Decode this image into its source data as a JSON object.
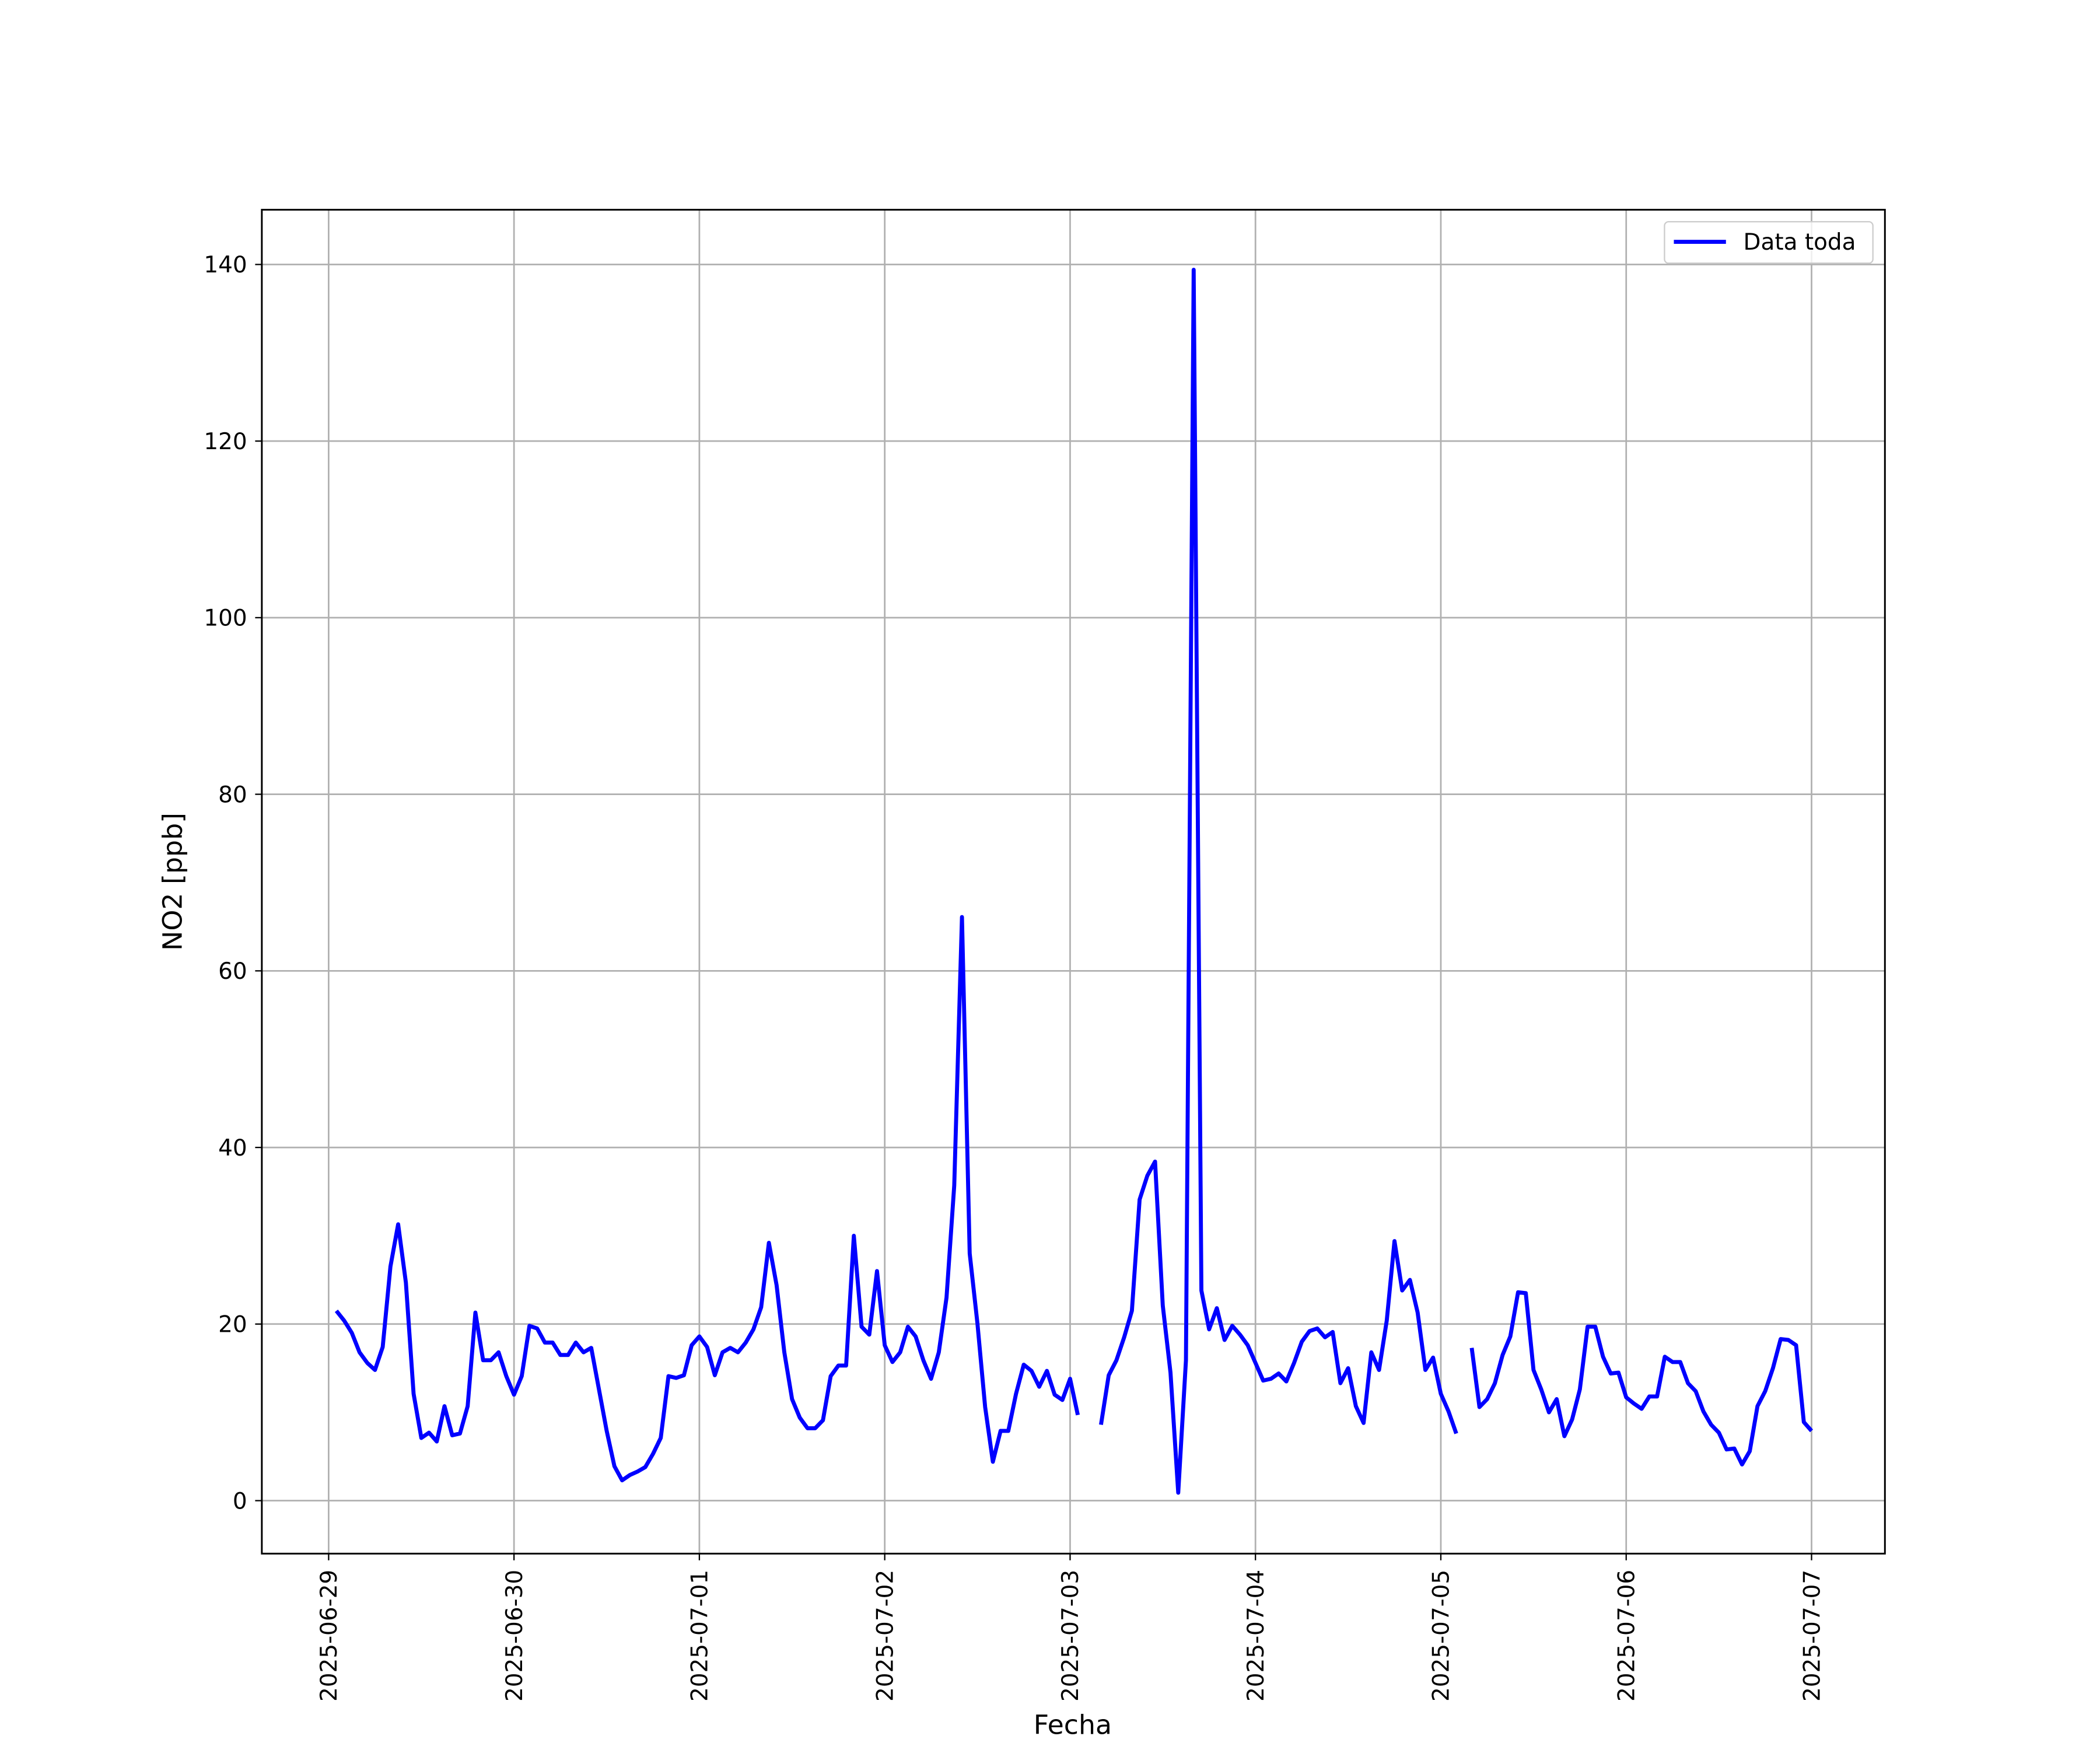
{
  "chart_data": {
    "type": "line",
    "xlabel": "Fecha",
    "ylabel": "NO2 [ppb]",
    "xlim": [
      "2025-06-28 15:21",
      "2025-07-07 09:30"
    ],
    "xticks": [
      "2025-06-29",
      "2025-06-30",
      "2025-07-01",
      "2025-07-02",
      "2025-07-03",
      "2025-07-04",
      "2025-07-05",
      "2025-07-06",
      "2025-07-07"
    ],
    "ylim": [
      -6,
      146.2
    ],
    "yticks": [
      0,
      20,
      40,
      60,
      80,
      100,
      120,
      140
    ],
    "grid": true,
    "legend": "upper right",
    "x": [
      "2025-06-29 01:00",
      "2025-06-29 02:00",
      "2025-06-29 03:00",
      "2025-06-29 04:00",
      "2025-06-29 05:00",
      "2025-06-29 06:00",
      "2025-06-29 07:00",
      "2025-06-29 08:00",
      "2025-06-29 09:00",
      "2025-06-29 10:00",
      "2025-06-29 11:00",
      "2025-06-29 12:00",
      "2025-06-29 13:00",
      "2025-06-29 14:00",
      "2025-06-29 15:00",
      "2025-06-29 16:00",
      "2025-06-29 17:00",
      "2025-06-29 18:00",
      "2025-06-29 19:00",
      "2025-06-29 20:00",
      "2025-06-29 21:00",
      "2025-06-29 22:00",
      "2025-06-29 23:00",
      "2025-06-30 00:00",
      "2025-06-30 01:00",
      "2025-06-30 02:00",
      "2025-06-30 03:00",
      "2025-06-30 04:00",
      "2025-06-30 05:00",
      "2025-06-30 06:00",
      "2025-06-30 07:00",
      "2025-06-30 08:00",
      "2025-06-30 09:00",
      "2025-06-30 10:00",
      "2025-06-30 11:00",
      "2025-06-30 12:00",
      "2025-06-30 13:00",
      "2025-06-30 14:00",
      "2025-06-30 15:00",
      "2025-06-30 16:00",
      "2025-06-30 17:00",
      "2025-06-30 18:00",
      "2025-06-30 19:00",
      "2025-06-30 20:00",
      "2025-06-30 21:00",
      "2025-06-30 22:00",
      "2025-06-30 23:00",
      "2025-07-01 00:00",
      "2025-07-01 01:00",
      "2025-07-01 02:00",
      "2025-07-01 03:00",
      "2025-07-01 04:00",
      "2025-07-01 05:00",
      "2025-07-01 06:00",
      "2025-07-01 07:00",
      "2025-07-01 08:00",
      "2025-07-01 09:00",
      "2025-07-01 10:00",
      "2025-07-01 11:00",
      "2025-07-01 12:00",
      "2025-07-01 13:00",
      "2025-07-01 14:00",
      "2025-07-01 15:00",
      "2025-07-01 16:00",
      "2025-07-01 17:00",
      "2025-07-01 18:00",
      "2025-07-01 19:00",
      "2025-07-01 20:00",
      "2025-07-01 21:00",
      "2025-07-01 22:00",
      "2025-07-01 23:00",
      "2025-07-02 00:00",
      "2025-07-02 01:00",
      "2025-07-02 02:00",
      "2025-07-02 03:00",
      "2025-07-02 04:00",
      "2025-07-02 05:00",
      "2025-07-02 06:00",
      "2025-07-02 07:00",
      "2025-07-02 08:00",
      "2025-07-02 09:00",
      "2025-07-02 10:00",
      "2025-07-02 11:00",
      "2025-07-02 12:00",
      "2025-07-02 13:00",
      "2025-07-02 14:00",
      "2025-07-02 15:00",
      "2025-07-02 16:00",
      "2025-07-02 17:00",
      "2025-07-02 18:00",
      "2025-07-02 19:00",
      "2025-07-02 20:00",
      "2025-07-02 21:00",
      "2025-07-02 22:00",
      "2025-07-02 23:00",
      "2025-07-03 00:00",
      "2025-07-03 01:00",
      "2025-07-03 02:00",
      "2025-07-03 03:00",
      "2025-07-03 04:00",
      "2025-07-03 05:00",
      "2025-07-03 06:00",
      "2025-07-03 07:00",
      "2025-07-03 08:00",
      "2025-07-03 09:00",
      "2025-07-03 10:00",
      "2025-07-03 11:00",
      "2025-07-03 12:00",
      "2025-07-03 13:00",
      "2025-07-03 14:00",
      "2025-07-03 15:00",
      "2025-07-03 16:00",
      "2025-07-03 17:00",
      "2025-07-03 18:00",
      "2025-07-03 19:00",
      "2025-07-03 20:00",
      "2025-07-03 21:00",
      "2025-07-03 22:00",
      "2025-07-03 23:00",
      "2025-07-04 00:00",
      "2025-07-04 01:00",
      "2025-07-04 02:00",
      "2025-07-04 03:00",
      "2025-07-04 04:00",
      "2025-07-04 05:00",
      "2025-07-04 06:00",
      "2025-07-04 07:00",
      "2025-07-04 08:00",
      "2025-07-04 09:00",
      "2025-07-04 10:00",
      "2025-07-04 11:00",
      "2025-07-04 12:00",
      "2025-07-04 13:00",
      "2025-07-04 14:00",
      "2025-07-04 15:00",
      "2025-07-04 16:00",
      "2025-07-04 17:00",
      "2025-07-04 18:00",
      "2025-07-04 19:00",
      "2025-07-04 20:00",
      "2025-07-04 21:00",
      "2025-07-04 22:00",
      "2025-07-04 23:00",
      "2025-07-05 00:00",
      "2025-07-05 01:00",
      "2025-07-05 02:00",
      "2025-07-05 03:00",
      "2025-07-05 04:00",
      "2025-07-05 05:00",
      "2025-07-05 06:00",
      "2025-07-05 07:00",
      "2025-07-05 08:00",
      "2025-07-05 09:00",
      "2025-07-05 10:00",
      "2025-07-05 11:00",
      "2025-07-05 12:00",
      "2025-07-05 13:00",
      "2025-07-05 14:00",
      "2025-07-05 15:00",
      "2025-07-05 16:00",
      "2025-07-05 17:00",
      "2025-07-05 18:00",
      "2025-07-05 19:00",
      "2025-07-05 20:00",
      "2025-07-05 21:00",
      "2025-07-05 22:00",
      "2025-07-05 23:00",
      "2025-07-06 00:00",
      "2025-07-06 01:00",
      "2025-07-06 02:00",
      "2025-07-06 03:00",
      "2025-07-06 04:00",
      "2025-07-06 05:00",
      "2025-07-06 06:00",
      "2025-07-06 07:00",
      "2025-07-06 08:00",
      "2025-07-06 09:00",
      "2025-07-06 10:00",
      "2025-07-06 11:00",
      "2025-07-06 12:00",
      "2025-07-06 13:00",
      "2025-07-06 14:00",
      "2025-07-06 15:00",
      "2025-07-06 16:00",
      "2025-07-06 17:00",
      "2025-07-06 18:00",
      "2025-07-06 19:00",
      "2025-07-06 20:00",
      "2025-07-06 21:00",
      "2025-07-06 22:00",
      "2025-07-06 23:00",
      "2025-07-07 00:00"
    ],
    "series": [
      {
        "name": "Data toda",
        "color": "#0000ff",
        "values": [
          21.5,
          20.4,
          19,
          16.8,
          15.6,
          14.8,
          17.4,
          26.5,
          31.3,
          24.7,
          12.1,
          7.1,
          7.7,
          6.7,
          10.7,
          7.4,
          7.6,
          10.7,
          21.3,
          15.9,
          15.9,
          16.8,
          14.1,
          12,
          14.1,
          19.8,
          19.5,
          17.9,
          17.9,
          16.5,
          16.5,
          17.9,
          16.8,
          17.3,
          12.6,
          7.9,
          3.9,
          2.3,
          2.9,
          3.3,
          3.8,
          5.3,
          7.1,
          14.1,
          13.9,
          14.2,
          17.6,
          18.6,
          17.4,
          14.2,
          16.8,
          17.3,
          16.8,
          17.9,
          19.4,
          21.9,
          29.2,
          24.4,
          16.8,
          11.5,
          9.4,
          8.2,
          8.2,
          9.1,
          14.1,
          15.3,
          15.3,
          30,
          19.7,
          18.8,
          26,
          17.6,
          15.7,
          16.8,
          19.7,
          18.6,
          15.9,
          13.8,
          16.8,
          23,
          35.7,
          66.1,
          28,
          20.1,
          10.6,
          4.4,
          7.9,
          7.9,
          12.1,
          15.4,
          14.7,
          12.9,
          14.7,
          12,
          11.4,
          13.8,
          9.7,
          null,
          null,
          8.6,
          14.2,
          15.9,
          18.5,
          21.5,
          34.1,
          36.8,
          38.4,
          22.1,
          14.5,
          0.9,
          15.9,
          139.4,
          23.8,
          19.4,
          21.8,
          18.2,
          19.8,
          18.8,
          17.6,
          15.6,
          13.6,
          13.8,
          14.4,
          13.5,
          15.6,
          18,
          19.2,
          19.5,
          18.5,
          19.1,
          13.3,
          15,
          10.7,
          8.8,
          16.8,
          14.8,
          20.4,
          29.4,
          23.8,
          25,
          21.3,
          14.8,
          16.2,
          12.1,
          10.1,
          7.6,
          null,
          17.3,
          10.6,
          11.5,
          13.3,
          16.5,
          18.6,
          23.6,
          23.5,
          14.8,
          12.6,
          10,
          11.5,
          7.3,
          9.2,
          12.6,
          19.7,
          19.7,
          16.3,
          14.4,
          14.5,
          11.7,
          11,
          10.4,
          11.8,
          11.8,
          16.3,
          15.7,
          15.7,
          13.3,
          12.4,
          10.1,
          8.6,
          7.7,
          5.8,
          5.9,
          4.1,
          5.6,
          10.7,
          12.4,
          15,
          18.3,
          18.2,
          17.6,
          8.9,
          7.9
        ]
      }
    ]
  }
}
